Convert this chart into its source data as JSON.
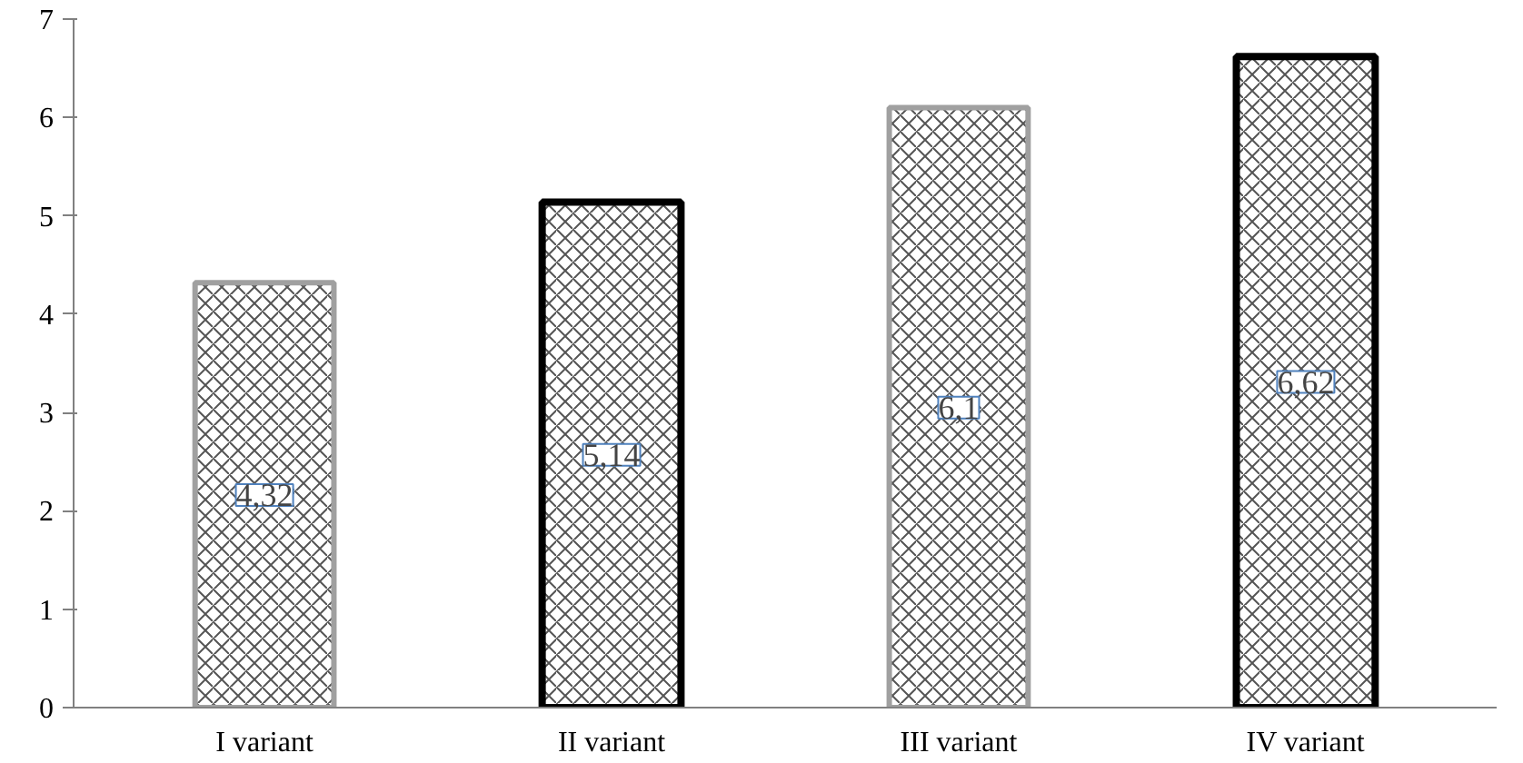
{
  "chart_data": {
    "type": "bar",
    "categories": [
      "I variant",
      "II variant",
      "III variant",
      "IV variant"
    ],
    "values": [
      4.32,
      5.14,
      6.1,
      6.62
    ],
    "colors": [
      "#a0a0a0",
      "#000000",
      "#a0a0a0",
      "#000000"
    ],
    "value_labels": [
      "4,32",
      "5,14",
      "6,1",
      "6,62"
    ],
    "ylim": [
      0,
      7
    ],
    "yticks": [
      0,
      1,
      2,
      3,
      4,
      5,
      6,
      7
    ],
    "grid": false
  }
}
